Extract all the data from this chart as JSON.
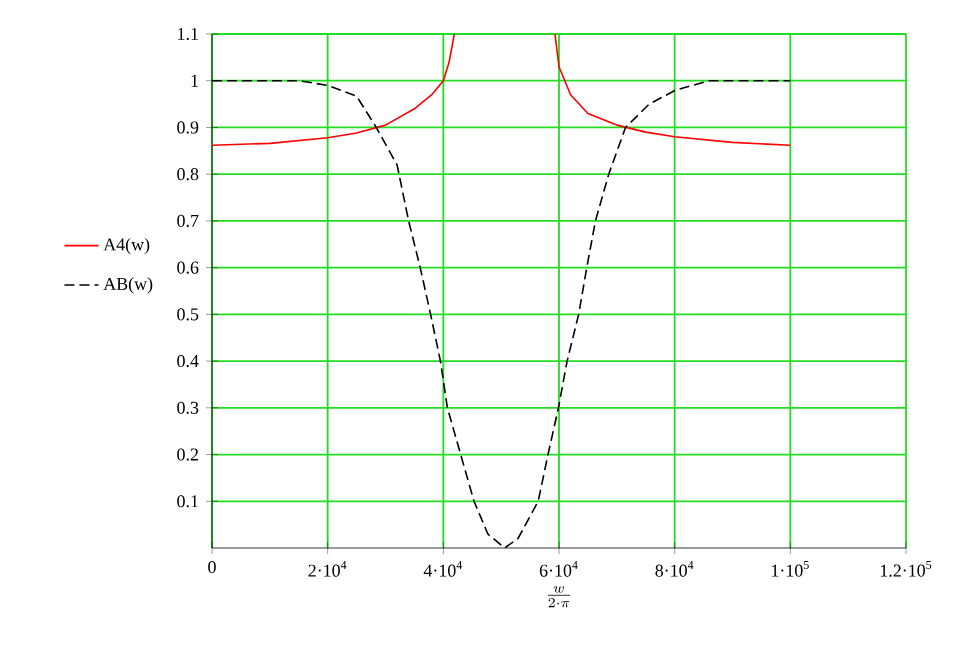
{
  "chart_data": {
    "type": "line",
    "xlabel": "\\frac{w}{2\\cdot\\pi}",
    "xlim": [
      0,
      120000
    ],
    "ylim": [
      0,
      1.1
    ],
    "xticks": [
      0,
      {
        "value": 20000,
        "label": "2·10$^{4}$"
      },
      {
        "value": 40000,
        "label": "4·10$^{4}$"
      },
      {
        "value": 60000,
        "label": "6·10$^{4}$"
      },
      {
        "value": 80000,
        "label": "8·10$^{4}$"
      },
      {
        "value": 100000,
        "label": "1·10$^{5}$"
      },
      {
        "value": 120000,
        "label": "1.2·10$^{5}$"
      }
    ],
    "yticks": [
      0.1,
      0.2,
      0.3,
      0.4,
      0.5,
      0.6,
      0.7,
      0.8,
      0.9,
      1,
      1.1
    ],
    "grid": true,
    "legend": "left",
    "series": [
      {
        "name": "A4(w)",
        "color": "#ff0000",
        "line_style": "solid",
        "x": [
          0,
          10000,
          20000,
          25000,
          30000,
          35000,
          38000,
          40000,
          41000,
          41900,
          50000,
          59300,
          60000,
          62000,
          65000,
          70000,
          75000,
          80000,
          90000,
          100000
        ],
        "values": [
          0.862,
          0.866,
          0.878,
          0.888,
          0.905,
          0.94,
          0.97,
          1.0,
          1.04,
          1.1,
          null,
          1.1,
          1.03,
          0.97,
          0.93,
          0.905,
          0.89,
          0.88,
          0.868,
          0.862
        ]
      },
      {
        "name": "AB(w)",
        "color": "#000000",
        "line_style": "dashed",
        "x": [
          0,
          15000,
          20000,
          25000,
          28400,
          32000,
          34000,
          36000,
          37800,
          39500,
          40700,
          43000,
          45300,
          47700,
          50600,
          52900,
          56400,
          58100,
          59900,
          61400,
          63400,
          64800,
          66300,
          68600,
          71500,
          75600,
          80200,
          86000,
          100000
        ],
        "values": [
          1.0,
          1.0,
          0.99,
          0.967,
          0.9,
          0.82,
          0.7,
          0.6,
          0.5,
          0.4,
          0.3,
          0.2,
          0.1,
          0.03,
          0.0,
          0.02,
          0.1,
          0.2,
          0.3,
          0.4,
          0.5,
          0.6,
          0.7,
          0.8,
          0.9,
          0.95,
          0.98,
          1.0,
          1.0
        ]
      }
    ]
  }
}
